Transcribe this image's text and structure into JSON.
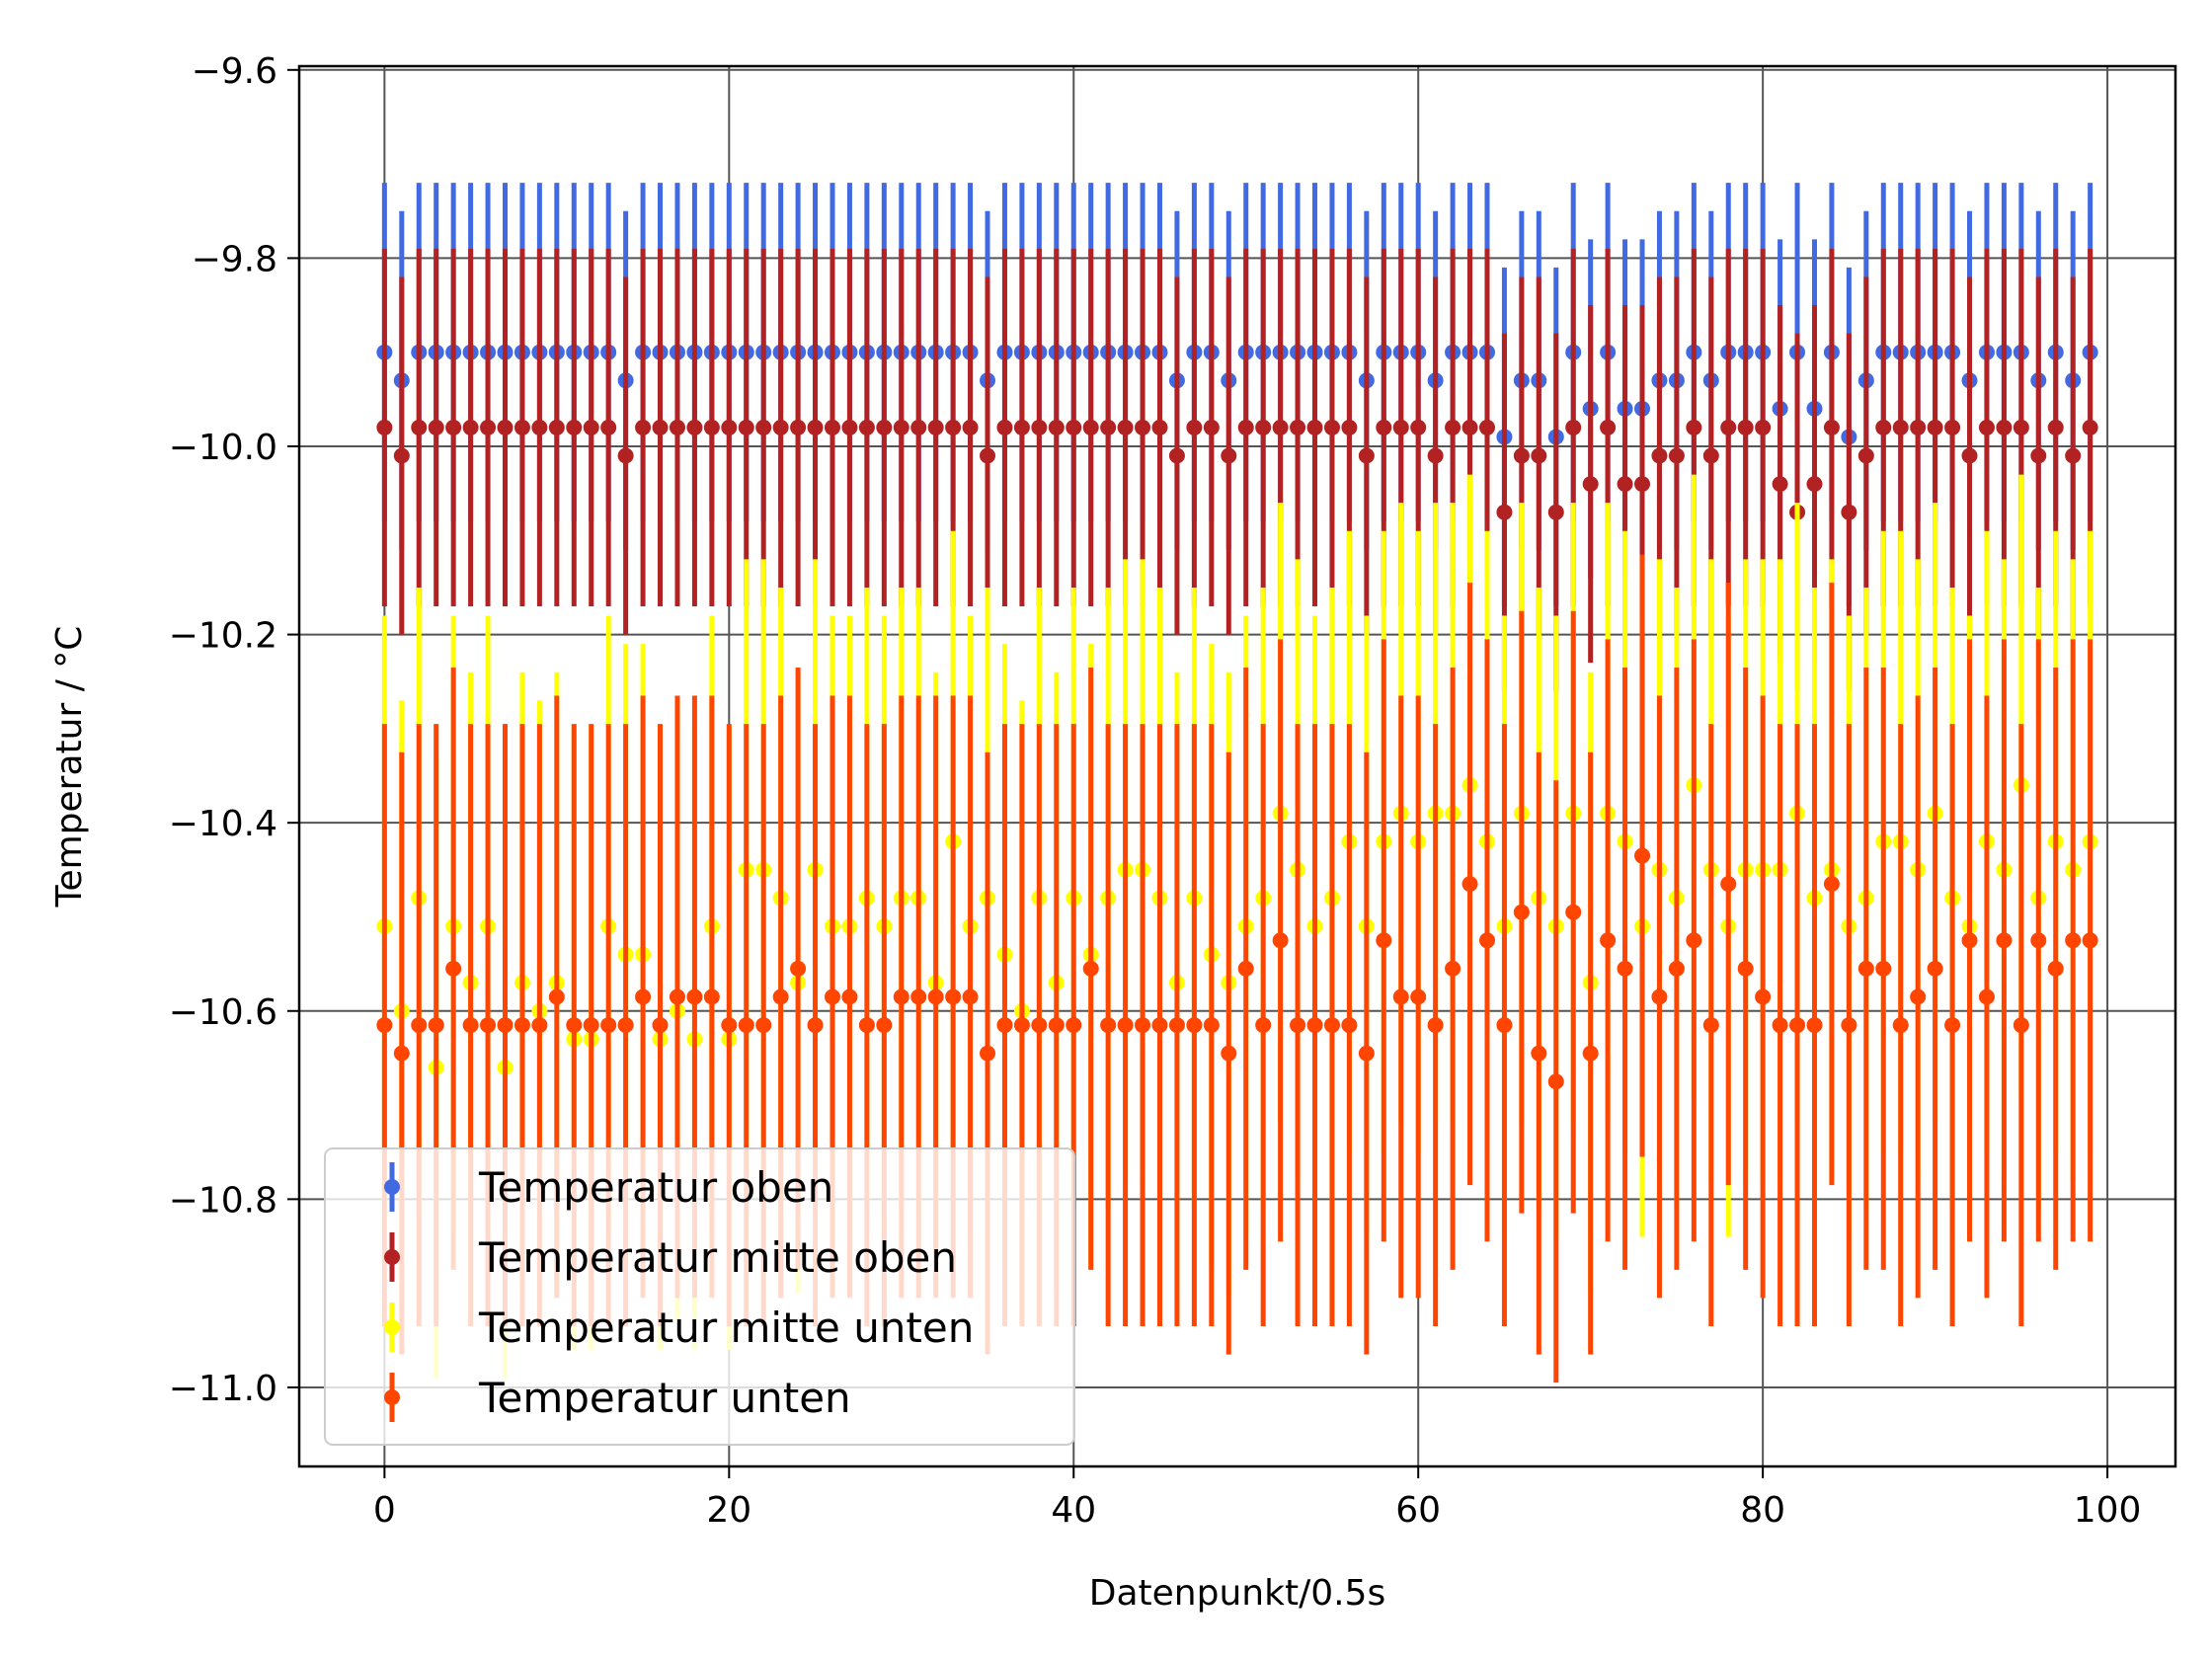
{
  "chart_data": {
    "type": "scatter",
    "title": "",
    "xlabel": "Datenpunkt/0.5s",
    "ylabel": "Temperatur / °C",
    "xlim": [
      -4.95,
      103.95
    ],
    "ylim": [
      -11.084,
      -9.596
    ],
    "xticks": [
      0,
      20,
      40,
      60,
      80,
      100
    ],
    "xtick_labels": [
      "0",
      "20",
      "40",
      "60",
      "80",
      "100"
    ],
    "yticks": [
      -11.0,
      -10.8,
      -10.6,
      -10.4,
      -10.2,
      -10.0,
      -9.8,
      -9.6
    ],
    "ytick_labels": [
      "−11.0",
      "−10.8",
      "−10.6",
      "−10.4",
      "−10.2",
      "−10.0",
      "−9.8",
      "−9.6"
    ],
    "grid": true,
    "legend_position": "lower-left",
    "series": [
      {
        "name": "Temperatur oben",
        "color": "#4169e1",
        "yerr": 0.18,
        "y": [
          -9.9,
          -9.93,
          -9.9,
          -9.9,
          -9.9,
          -9.9,
          -9.9,
          -9.9,
          -9.9,
          -9.9,
          -9.9,
          -9.9,
          -9.9,
          -9.9,
          -9.93,
          -9.9,
          -9.9,
          -9.9,
          -9.9,
          -9.9,
          -9.9,
          -9.9,
          -9.9,
          -9.9,
          -9.9,
          -9.9,
          -9.9,
          -9.9,
          -9.9,
          -9.9,
          -9.9,
          -9.9,
          -9.9,
          -9.9,
          -9.9,
          -9.93,
          -9.9,
          -9.9,
          -9.9,
          -9.9,
          -9.9,
          -9.9,
          -9.9,
          -9.9,
          -9.9,
          -9.9,
          -9.93,
          -9.9,
          -9.9,
          -9.93,
          -9.9,
          -9.9,
          -9.9,
          -9.9,
          -9.9,
          -9.9,
          -9.9,
          -9.93,
          -9.9,
          -9.9,
          -9.9,
          -9.93,
          -9.9,
          -9.9,
          -9.9,
          -9.99,
          -9.93,
          -9.93,
          -9.99,
          -9.9,
          -9.96,
          -9.9,
          -9.96,
          -9.96,
          -9.93,
          -9.93,
          -9.9,
          -9.93,
          -9.9,
          -9.9,
          -9.9,
          -9.96,
          -9.9,
          -9.96,
          -9.9,
          -9.99,
          -9.93,
          -9.9,
          -9.9,
          -9.9,
          -9.9,
          -9.9,
          -9.93,
          -9.9,
          -9.9,
          -9.9,
          -9.93,
          -9.9,
          -9.93,
          -9.9
        ]
      },
      {
        "name": "Temperatur mitte oben",
        "color": "#b22222",
        "yerr": 0.19,
        "y": [
          -9.98,
          -10.01,
          -9.98,
          -9.98,
          -9.98,
          -9.98,
          -9.98,
          -9.98,
          -9.98,
          -9.98,
          -9.98,
          -9.98,
          -9.98,
          -9.98,
          -10.01,
          -9.98,
          -9.98,
          -9.98,
          -9.98,
          -9.98,
          -9.98,
          -9.98,
          -9.98,
          -9.98,
          -9.98,
          -9.98,
          -9.98,
          -9.98,
          -9.98,
          -9.98,
          -9.98,
          -9.98,
          -9.98,
          -9.98,
          -9.98,
          -10.01,
          -9.98,
          -9.98,
          -9.98,
          -9.98,
          -9.98,
          -9.98,
          -9.98,
          -9.98,
          -9.98,
          -9.98,
          -10.01,
          -9.98,
          -9.98,
          -10.01,
          -9.98,
          -9.98,
          -9.98,
          -9.98,
          -9.98,
          -9.98,
          -9.98,
          -10.01,
          -9.98,
          -9.98,
          -9.98,
          -10.01,
          -9.98,
          -9.98,
          -9.98,
          -10.07,
          -10.01,
          -10.01,
          -10.07,
          -9.98,
          -10.04,
          -9.98,
          -10.04,
          -10.04,
          -10.01,
          -10.01,
          -9.98,
          -10.01,
          -9.98,
          -9.98,
          -9.98,
          -10.04,
          -10.07,
          -10.04,
          -9.98,
          -10.07,
          -10.01,
          -9.98,
          -9.98,
          -9.98,
          -9.98,
          -9.98,
          -10.01,
          -9.98,
          -9.98,
          -9.98,
          -10.01,
          -9.98,
          -10.01,
          -9.98
        ]
      },
      {
        "name": "Temperatur mitte unten",
        "color": "#ffff00",
        "yerr": 0.33,
        "y": [
          -10.51,
          -10.6,
          -10.48,
          -10.66,
          -10.51,
          -10.57,
          -10.51,
          -10.66,
          -10.57,
          -10.6,
          -10.57,
          -10.63,
          -10.63,
          -10.51,
          -10.54,
          -10.54,
          -10.63,
          -10.6,
          -10.63,
          -10.51,
          -10.63,
          -10.45,
          -10.45,
          -10.48,
          -10.57,
          -10.45,
          -10.51,
          -10.51,
          -10.48,
          -10.51,
          -10.48,
          -10.48,
          -10.57,
          -10.42,
          -10.51,
          -10.48,
          -10.54,
          -10.6,
          -10.48,
          -10.57,
          -10.48,
          -10.54,
          -10.48,
          -10.45,
          -10.45,
          -10.48,
          -10.57,
          -10.48,
          -10.54,
          -10.57,
          -10.51,
          -10.48,
          -10.39,
          -10.45,
          -10.51,
          -10.48,
          -10.42,
          -10.51,
          -10.42,
          -10.39,
          -10.42,
          -10.39,
          -10.39,
          -10.36,
          -10.42,
          -10.51,
          -10.39,
          -10.48,
          -10.51,
          -10.39,
          -10.57,
          -10.39,
          -10.42,
          -10.51,
          -10.45,
          -10.48,
          -10.36,
          -10.45,
          -10.51,
          -10.45,
          -10.45,
          -10.45,
          -10.39,
          -10.48,
          -10.45,
          -10.51,
          -10.48,
          -10.42,
          -10.42,
          -10.45,
          -10.39,
          -10.48,
          -10.51,
          -10.42,
          -10.45,
          -10.36,
          -10.48,
          -10.42,
          -10.45,
          -10.42
        ]
      },
      {
        "name": "Temperatur unten",
        "color": "#ff4500",
        "yerr": 0.32,
        "y": [
          -10.615,
          -10.645,
          -10.615,
          -10.615,
          -10.555,
          -10.615,
          -10.615,
          -10.615,
          -10.615,
          -10.615,
          -10.585,
          -10.615,
          -10.615,
          -10.615,
          -10.615,
          -10.585,
          -10.615,
          -10.585,
          -10.585,
          -10.585,
          -10.615,
          -10.615,
          -10.615,
          -10.585,
          -10.555,
          -10.615,
          -10.585,
          -10.585,
          -10.615,
          -10.615,
          -10.585,
          -10.585,
          -10.585,
          -10.585,
          -10.585,
          -10.645,
          -10.615,
          -10.615,
          -10.615,
          -10.615,
          -10.615,
          -10.555,
          -10.615,
          -10.615,
          -10.615,
          -10.615,
          -10.615,
          -10.615,
          -10.615,
          -10.645,
          -10.555,
          -10.615,
          -10.525,
          -10.615,
          -10.615,
          -10.615,
          -10.615,
          -10.645,
          -10.525,
          -10.585,
          -10.585,
          -10.615,
          -10.555,
          -10.465,
          -10.525,
          -10.615,
          -10.495,
          -10.645,
          -10.675,
          -10.495,
          -10.645,
          -10.525,
          -10.555,
          -10.435,
          -10.585,
          -10.555,
          -10.525,
          -10.615,
          -10.465,
          -10.555,
          -10.585,
          -10.615,
          -10.615,
          -10.615,
          -10.465,
          -10.615,
          -10.555,
          -10.555,
          -10.615,
          -10.585,
          -10.555,
          -10.615,
          -10.525,
          -10.585,
          -10.525,
          -10.615,
          -10.525,
          -10.555,
          -10.525,
          -10.525
        ]
      }
    ]
  }
}
